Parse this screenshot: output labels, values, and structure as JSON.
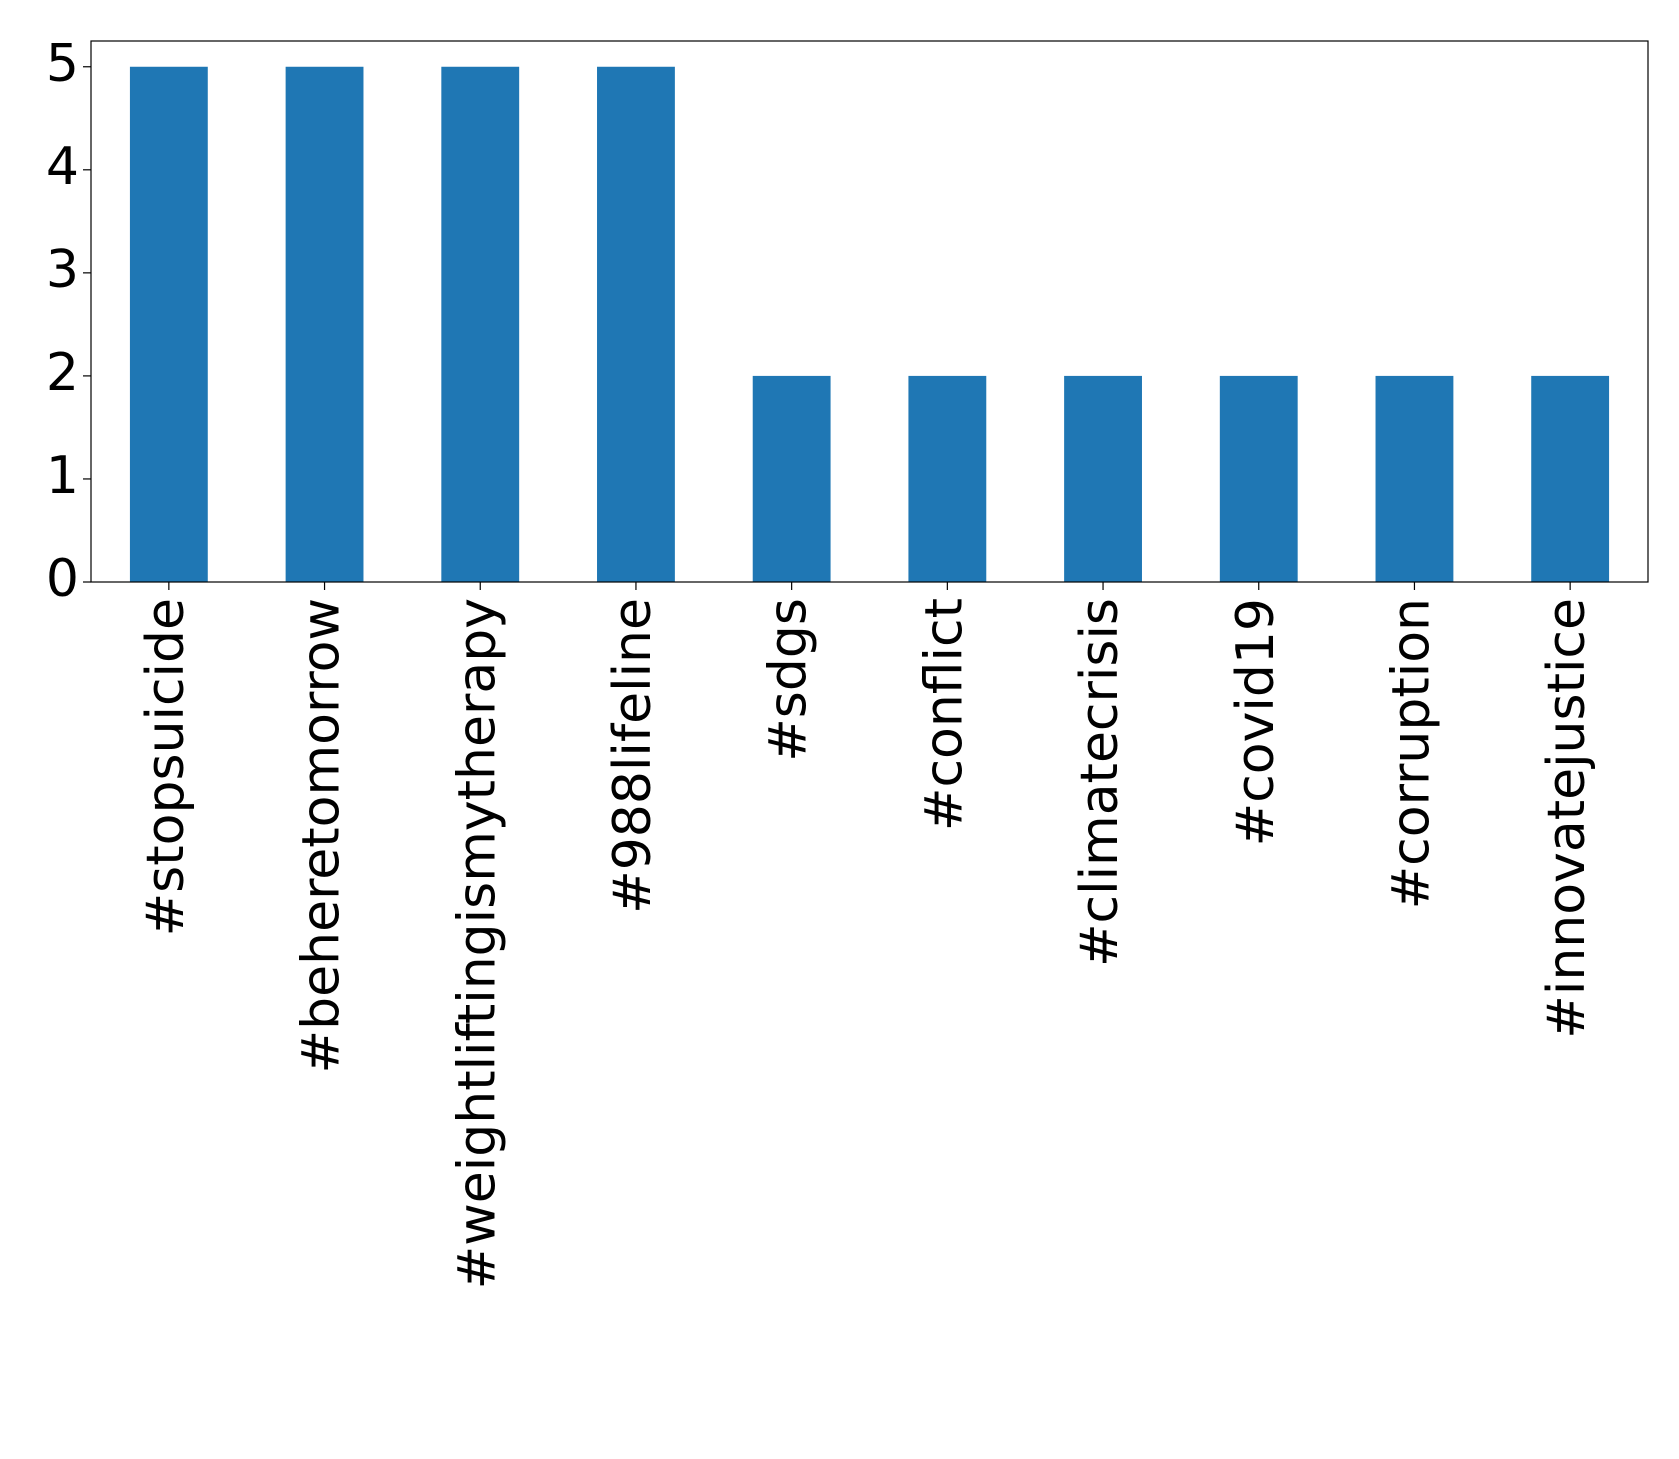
{
  "chart_data": {
    "type": "bar",
    "categories": [
      "#stopsuicide",
      "#beheretomorrow",
      "#weightliftingismytherapy",
      "#988lifeline",
      "#sdgs",
      "#conflict",
      "#climatecrisis",
      "#covid19",
      "#corruption",
      "#innovatejustice"
    ],
    "values": [
      5,
      5,
      5,
      5,
      2,
      2,
      2,
      2,
      2,
      2
    ],
    "color": "#1f77b4",
    "ylim": [
      0,
      5.25
    ],
    "yticks": [
      0,
      1,
      2,
      3,
      4,
      5
    ],
    "grid": false
  }
}
